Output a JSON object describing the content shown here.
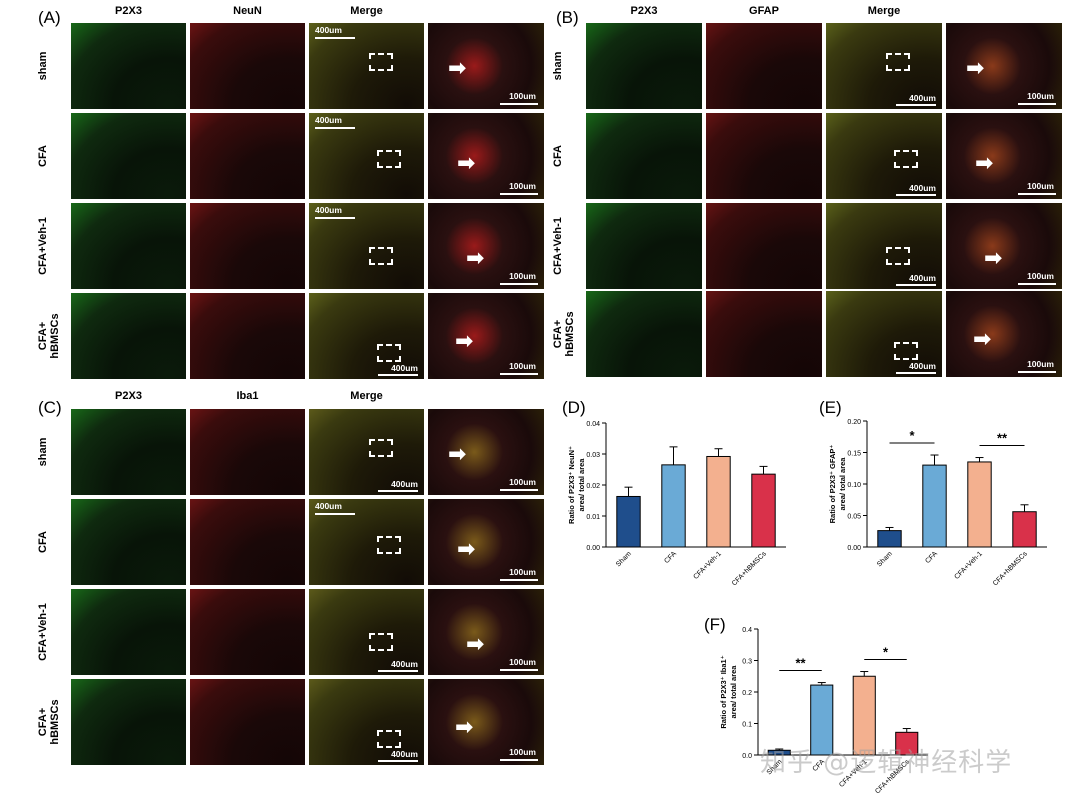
{
  "panels": {
    "A": {
      "label": "(A)",
      "cols": [
        "P2X3",
        "NeuN",
        "Merge"
      ],
      "rows": [
        "sham",
        "CFA",
        "CFA+Veh-1",
        "CFA+\nhBMSCs"
      ],
      "colors": [
        "#1f9a1f",
        "#b81f1f",
        "#8f9a2a",
        "#9a1a1a"
      ]
    },
    "B": {
      "label": "(B)",
      "cols": [
        "P2X3",
        "GFAP",
        "Merge"
      ],
      "rows": [
        "sham",
        "CFA",
        "CFA+Veh-1",
        "CFA+\nhBMSCs"
      ],
      "colors": [
        "#1f9a1f",
        "#a81f1f",
        "#889a2a",
        "#8a3a1a"
      ]
    },
    "C": {
      "label": "(C)",
      "cols": [
        "P2X3",
        "Iba1",
        "Merge"
      ],
      "rows": [
        "sham",
        "CFA",
        "CFA+Veh-1",
        "CFA+\nhBMSCs"
      ],
      "colors": [
        "#1f9a1f",
        "#b01f1f",
        "#8f8a2a",
        "#7a5a1a"
      ]
    }
  },
  "scale": {
    "large": "400um",
    "small": "100um"
  },
  "watermark": "知乎 @逻辑神经科学",
  "chart_data": [
    {
      "panel": "(D)",
      "type": "bar",
      "categories": [
        "Sham",
        "CFA",
        "CFA+Veh-1",
        "CFA+hBMSCs"
      ],
      "values": [
        0.0163,
        0.0265,
        0.0292,
        0.0235
      ],
      "errors": [
        0.003,
        0.0058,
        0.0025,
        0.0025
      ],
      "ylabel_html": "Ratio of P2X3<sup>+</sup> NeuN<sup>+</sup>",
      "ylabel2": "area/ total area",
      "ylim": [
        0,
        0.04
      ],
      "ticks": [
        "0.00",
        "0.01",
        "0.02",
        "0.03",
        "0.04"
      ],
      "sig": []
    },
    {
      "panel": "(E)",
      "type": "bar",
      "categories": [
        "Sham",
        "CFA",
        "CFA+Veh-1",
        "CFA+hBMSCs"
      ],
      "values": [
        0.026,
        0.13,
        0.135,
        0.056
      ],
      "errors": [
        0.005,
        0.016,
        0.007,
        0.011
      ],
      "ylabel_html": "Ratio of P2X3<sup>+</sup> GFAP<sup>+</sup>",
      "ylabel2": "area/ total area",
      "ylim": [
        0,
        0.2
      ],
      "ticks": [
        "0.00",
        "0.05",
        "0.10",
        "0.15",
        "0.20"
      ],
      "sig": [
        {
          "from": 0,
          "to": 1,
          "label": "*"
        },
        {
          "from": 2,
          "to": 3,
          "label": "**"
        }
      ]
    },
    {
      "panel": "(F)",
      "type": "bar",
      "categories": [
        "Sham",
        "CFA",
        "CFA+Veh-1",
        "CFA+hBMSCs"
      ],
      "values": [
        0.015,
        0.222,
        0.25,
        0.072
      ],
      "errors": [
        0.004,
        0.008,
        0.015,
        0.012
      ],
      "ylabel_html": "Ratio of P2X3<sup>+</sup> Iba1<sup>+</sup>",
      "ylabel2": "area/ total area",
      "ylim": [
        0,
        0.4
      ],
      "ticks": [
        "0.0",
        "0.1",
        "0.2",
        "0.3",
        "0.4"
      ],
      "sig": [
        {
          "from": 0,
          "to": 1,
          "label": "**"
        },
        {
          "from": 2,
          "to": 3,
          "label": "*"
        }
      ]
    }
  ],
  "bar_colors": [
    "#1f4e8c",
    "#6aaad6",
    "#f3b08f",
    "#d9314a"
  ]
}
